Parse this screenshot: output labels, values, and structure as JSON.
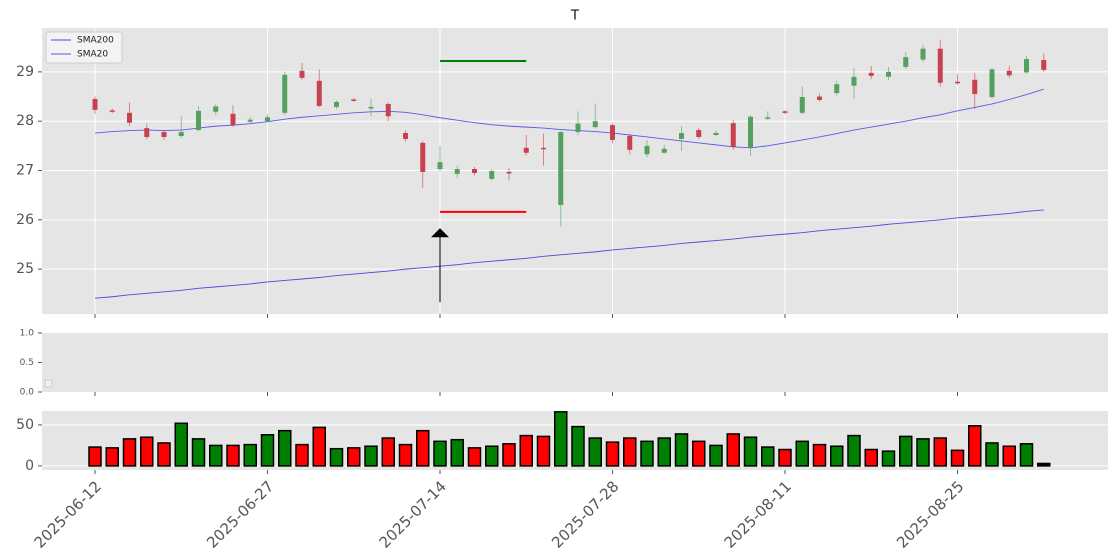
{
  "chart_data": [
    {
      "type": "candlestick",
      "title": "T",
      "x": [
        "2025-06-12",
        "2025-06-13",
        "2025-06-16",
        "2025-06-17",
        "2025-06-18",
        "2025-06-20",
        "2025-06-23",
        "2025-06-24",
        "2025-06-25",
        "2025-06-26",
        "2025-06-27",
        "2025-06-30",
        "2025-07-01",
        "2025-07-02",
        "2025-07-03",
        "2025-07-07",
        "2025-07-08",
        "2025-07-09",
        "2025-07-10",
        "2025-07-11",
        "2025-07-14",
        "2025-07-15",
        "2025-07-16",
        "2025-07-17",
        "2025-07-18",
        "2025-07-21",
        "2025-07-22",
        "2025-07-23",
        "2025-07-24",
        "2025-07-25",
        "2025-07-28",
        "2025-07-29",
        "2025-07-30",
        "2025-07-31",
        "2025-08-01",
        "2025-08-04",
        "2025-08-05",
        "2025-08-06",
        "2025-08-07",
        "2025-08-08",
        "2025-08-11",
        "2025-08-12",
        "2025-08-13",
        "2025-08-14",
        "2025-08-15",
        "2025-08-18",
        "2025-08-19",
        "2025-08-20",
        "2025-08-21",
        "2025-08-22",
        "2025-08-25",
        "2025-08-26",
        "2025-08-27",
        "2025-08-28",
        "2025-08-29",
        "2025-09-02"
      ],
      "open": [
        28.45,
        28.22,
        28.17,
        27.86,
        27.78,
        27.7,
        27.82,
        28.19,
        28.15,
        27.99,
        28.0,
        28.17,
        29.02,
        28.82,
        28.29,
        28.44,
        28.27,
        28.35,
        27.76,
        27.56,
        27.03,
        26.93,
        27.03,
        26.83,
        26.97,
        27.46,
        27.46,
        26.3,
        27.78,
        27.88,
        27.92,
        27.7,
        27.33,
        27.36,
        27.64,
        27.82,
        27.72,
        27.96,
        27.46,
        28.06,
        28.2,
        28.17,
        28.5,
        28.57,
        28.72,
        28.98,
        28.9,
        29.1,
        29.25,
        29.47,
        28.8,
        28.84,
        28.49,
        29.02,
        28.99,
        29.24
      ],
      "high": [
        28.5,
        28.26,
        28.38,
        27.95,
        27.82,
        28.1,
        28.3,
        28.34,
        28.32,
        28.08,
        28.14,
        29.0,
        29.18,
        29.05,
        28.42,
        28.47,
        28.45,
        28.38,
        27.82,
        27.6,
        27.5,
        27.1,
        27.07,
        27.03,
        27.05,
        27.72,
        27.75,
        27.8,
        28.2,
        28.35,
        27.96,
        27.74,
        27.62,
        27.52,
        27.9,
        27.86,
        27.8,
        28.02,
        28.12,
        28.2,
        28.22,
        28.7,
        28.56,
        28.82,
        29.08,
        29.12,
        29.1,
        29.4,
        29.55,
        29.65,
        28.96,
        28.98,
        29.08,
        29.12,
        29.32,
        29.38
      ],
      "low": [
        28.15,
        28.16,
        27.9,
        27.63,
        27.62,
        27.66,
        27.8,
        28.12,
        27.88,
        27.96,
        28.0,
        28.12,
        28.84,
        28.28,
        28.25,
        28.4,
        28.1,
        28.0,
        27.58,
        26.65,
        26.98,
        26.85,
        26.9,
        26.8,
        26.8,
        27.3,
        27.1,
        25.87,
        27.72,
        27.85,
        27.55,
        27.33,
        27.27,
        27.34,
        27.4,
        27.64,
        27.7,
        27.42,
        27.3,
        28.02,
        28.14,
        28.14,
        28.4,
        28.52,
        28.46,
        28.85,
        28.84,
        29.06,
        29.2,
        28.7,
        28.74,
        28.25,
        28.46,
        28.88,
        28.96,
        29.0
      ],
      "close": [
        28.23,
        28.2,
        27.97,
        27.68,
        27.68,
        27.78,
        28.21,
        28.3,
        27.92,
        28.03,
        28.08,
        28.94,
        28.88,
        28.31,
        28.39,
        28.42,
        28.29,
        28.1,
        27.64,
        26.97,
        27.17,
        27.03,
        26.95,
        26.99,
        26.95,
        27.36,
        27.44,
        27.78,
        27.95,
        28.0,
        27.62,
        27.42,
        27.5,
        27.44,
        27.76,
        27.68,
        27.76,
        27.48,
        28.09,
        28.08,
        28.17,
        28.49,
        28.43,
        28.75,
        28.9,
        28.92,
        29.0,
        29.3,
        29.47,
        28.78,
        28.77,
        28.55,
        29.05,
        28.93,
        29.26,
        29.04
      ],
      "up_color": "#55a060",
      "down_color": "#c8414f",
      "series": [
        {
          "name": "SMA200",
          "color": "#4b4bd8",
          "values": [
            24.41,
            24.44,
            24.48,
            24.51,
            24.54,
            24.57,
            24.61,
            24.64,
            24.67,
            24.7,
            24.74,
            24.77,
            24.8,
            24.83,
            24.87,
            24.9,
            24.93,
            24.96,
            25.0,
            25.03,
            25.06,
            25.09,
            25.13,
            25.16,
            25.19,
            25.22,
            25.26,
            25.29,
            25.32,
            25.35,
            25.39,
            25.42,
            25.45,
            25.48,
            25.52,
            25.55,
            25.58,
            25.61,
            25.65,
            25.68,
            25.71,
            25.74,
            25.78,
            25.81,
            25.84,
            25.87,
            25.91,
            25.94,
            25.97,
            26.0,
            26.04,
            26.07,
            26.1,
            26.13,
            26.17,
            26.2
          ]
        },
        {
          "name": "SMA20",
          "color": "#5a5ae6",
          "values": [
            27.76,
            27.79,
            27.81,
            27.82,
            27.81,
            27.82,
            27.86,
            27.9,
            27.92,
            27.95,
            27.99,
            28.04,
            28.08,
            28.11,
            28.14,
            28.17,
            28.19,
            28.2,
            28.18,
            28.13,
            28.07,
            28.02,
            27.97,
            27.93,
            27.9,
            27.88,
            27.86,
            27.83,
            27.81,
            27.79,
            27.76,
            27.72,
            27.68,
            27.64,
            27.6,
            27.56,
            27.52,
            27.48,
            27.46,
            27.5,
            27.56,
            27.62,
            27.68,
            27.75,
            27.82,
            27.88,
            27.94,
            28.0,
            28.07,
            28.13,
            28.21,
            28.28,
            28.35,
            28.44,
            28.54,
            28.65
          ]
        }
      ],
      "legend": "upper left",
      "hlines": [
        {
          "value": 29.22,
          "start": "2025-07-14",
          "end": "2025-07-21",
          "color": "green"
        },
        {
          "value": 26.16,
          "start": "2025-07-14",
          "end": "2025-07-21",
          "color": "red"
        }
      ],
      "arrow": {
        "x": "2025-07-14",
        "from": 24.33,
        "to": 25.83,
        "color": "black"
      },
      "ylim": [
        24.09,
        29.89
      ],
      "yticks": [
        25,
        26,
        27,
        28,
        29
      ],
      "grid": true
    },
    {
      "type": "empty",
      "ylim": [
        0,
        1
      ],
      "yticks": [
        {
          "value": 0,
          "label": "0.0"
        },
        0.5,
        {
          "value": 1,
          "label": "1.0"
        }
      ]
    },
    {
      "type": "bar",
      "values": [
        23,
        22,
        33,
        35,
        28,
        52,
        33,
        25,
        25,
        26,
        38,
        43,
        26,
        47,
        21,
        22,
        24,
        34,
        26,
        43,
        30,
        32,
        22,
        24,
        27,
        37,
        36,
        66,
        48,
        34,
        29,
        34,
        30,
        34,
        39,
        30,
        25,
        39,
        35,
        23,
        20,
        30,
        26,
        24,
        37,
        20,
        18,
        36,
        33,
        34,
        19,
        49,
        28,
        24,
        27,
        3
      ],
      "colors": [
        "red",
        "red",
        "red",
        "red",
        "red",
        "green",
        "green",
        "green",
        "red",
        "green",
        "green",
        "green",
        "red",
        "red",
        "green",
        "red",
        "green",
        "red",
        "red",
        "red",
        "green",
        "green",
        "red",
        "green",
        "red",
        "red",
        "red",
        "green",
        "green",
        "green",
        "red",
        "red",
        "green",
        "green",
        "green",
        "red",
        "green",
        "red",
        "green",
        "green",
        "red",
        "green",
        "red",
        "green",
        "green",
        "red",
        "green",
        "green",
        "green",
        "red",
        "red",
        "red",
        "green",
        "red",
        "green",
        "black"
      ],
      "ylim": [
        -5,
        67
      ],
      "yticks": [
        0,
        50
      ],
      "grid": true,
      "xticks": [
        "2025-06-12",
        "2025-06-27",
        "2025-07-14",
        "2025-07-28",
        "2025-08-11",
        "2025-08-25"
      ]
    }
  ]
}
